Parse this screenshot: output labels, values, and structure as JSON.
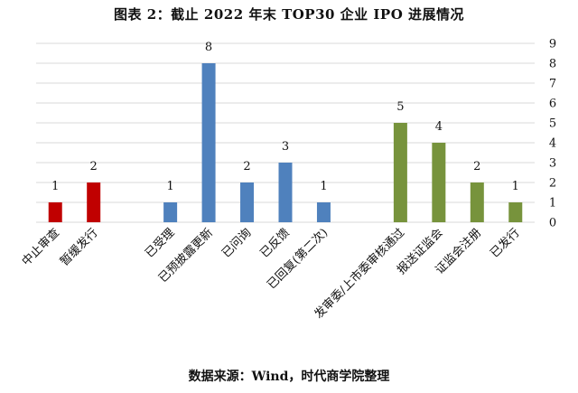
{
  "chart_data": {
    "type": "bar",
    "title": "图表 2：截止 2022 年末 TOP30 企业 IPO 进展情况",
    "source": "数据来源：Wind，时代商学院整理",
    "categories": [
      "中止审查",
      "暂缓发行",
      "",
      "已受理",
      "已预披露更新",
      "已问询",
      "已反馈",
      "已回复(第二次)",
      "",
      "发审委/上市委审核通过",
      "报送证监会",
      "证监会注册",
      "已发行"
    ],
    "values": [
      1,
      2,
      null,
      1,
      8,
      2,
      3,
      1,
      null,
      5,
      4,
      2,
      1
    ],
    "colors": [
      "#c00000",
      "#c00000",
      null,
      "#4f81bd",
      "#4f81bd",
      "#4f81bd",
      "#4f81bd",
      "#4f81bd",
      null,
      "#77933c",
      "#77933c",
      "#77933c",
      "#77933c"
    ],
    "ylim": [
      0,
      9
    ],
    "y_ticks": [
      0,
      1,
      2,
      3,
      4,
      5,
      6,
      7,
      8,
      9
    ],
    "y_axis_side": "right",
    "grid": true,
    "xlabel": "",
    "ylabel": ""
  }
}
